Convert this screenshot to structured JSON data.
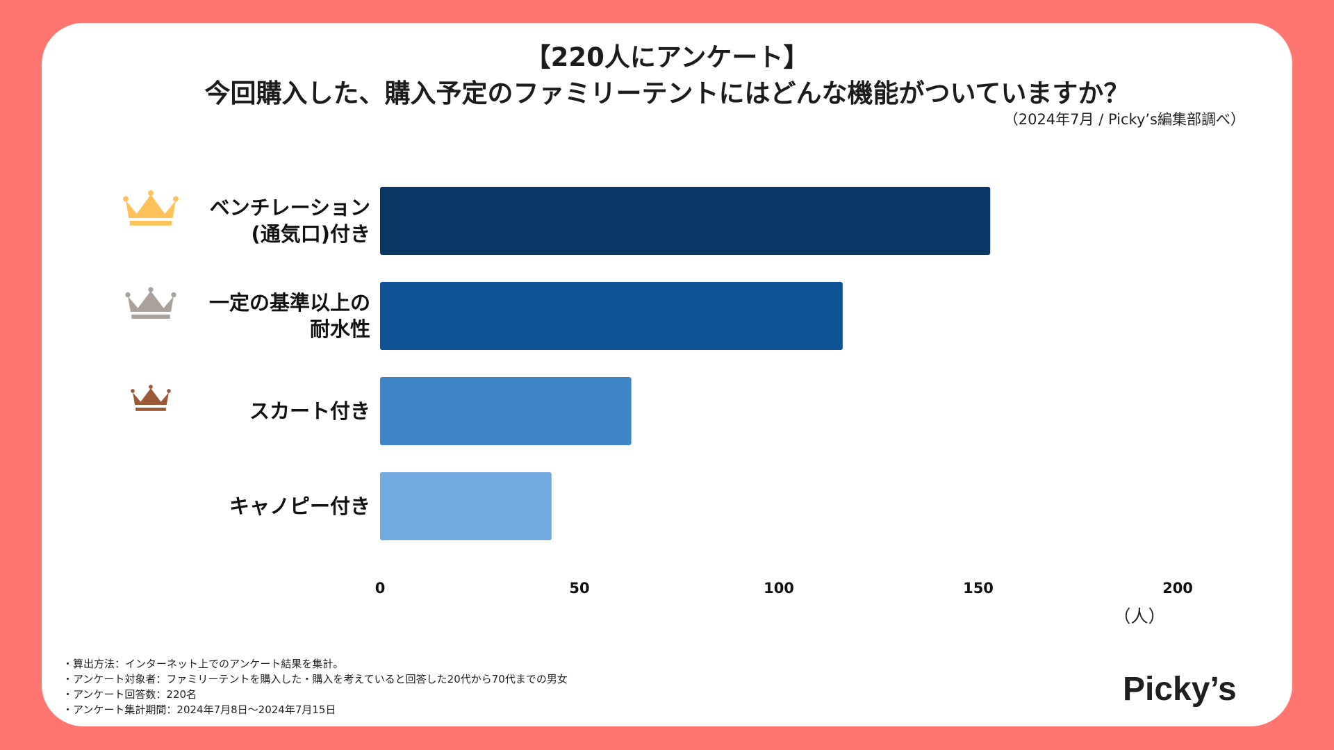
{
  "header": {
    "title_line1": "【220人にアンケート】",
    "title_line2": "今回購入した、購入予定のファミリーテントにはどんな機能がついていますか？",
    "source": "（2024年7月 / Picky’s編集部調べ）"
  },
  "colors": {
    "background": "#ff7670",
    "card": "#ffffff",
    "crown_gold": "#ffc25a",
    "crown_silver": "#aaa29a",
    "crown_bronze": "#9b5a35"
  },
  "chart_data": {
    "type": "bar",
    "orientation": "horizontal",
    "title": "今回購入した、購入予定のファミリーテントにはどんな機能がついていますか？",
    "categories": [
      "ベンチレーション\n(通気口)付き",
      "一定の基準以上の\n耐水性",
      "スカート付き",
      "キャノピー付き"
    ],
    "values": [
      153,
      116,
      63,
      43
    ],
    "bar_colors": [
      "#0a3763",
      "#0d5294",
      "#3f86c8",
      "#70aadf"
    ],
    "rank_icons": [
      "crown-gold-icon",
      "crown-silver-icon",
      "crown-bronze-icon",
      ""
    ],
    "xlim": [
      0,
      200
    ],
    "xticks": [
      0,
      50,
      100,
      150,
      200
    ],
    "xtick_labels": [
      "0",
      "50",
      "100",
      "150",
      "200"
    ],
    "xlabel": "（人）",
    "grid": false,
    "legend": "none"
  },
  "footer": {
    "notes": [
      "・算出方法：インターネット上でのアンケート結果を集計。",
      "・アンケート対象者：ファミリーテントを購入した・購入を考えていると回答した20代から70代までの男女",
      "・アンケート回答数：220名",
      "・アンケート集計期間：2024年7月8日〜2024年7月15日"
    ],
    "logo": "Picky’s"
  }
}
